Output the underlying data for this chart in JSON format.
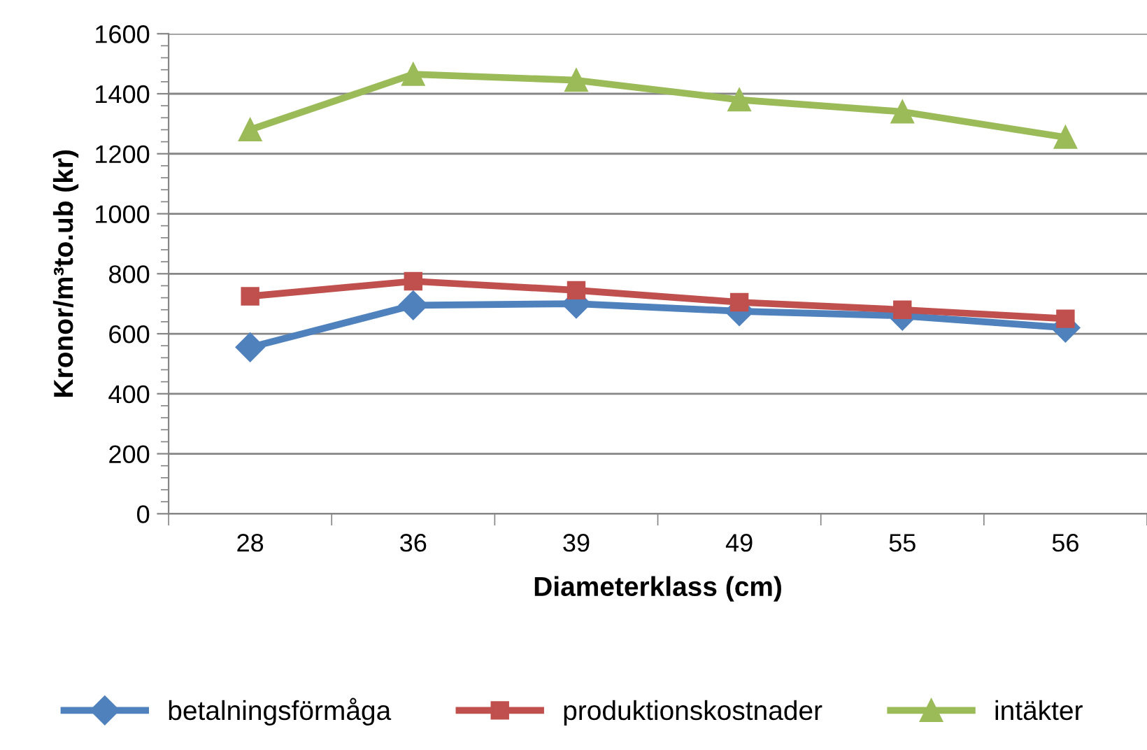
{
  "chart_data": {
    "type": "line",
    "xlabel": "Diameterklass (cm)",
    "ylabel": "Kronor/m³to.ub (kr)",
    "categories": [
      "28",
      "36",
      "39",
      "49",
      "55",
      "56"
    ],
    "series": [
      {
        "name": "betalningsförmåga",
        "color": "#4f81bd",
        "marker": "diamond",
        "values": [
          555,
          695,
          700,
          675,
          660,
          620
        ]
      },
      {
        "name": "produktionskostnader",
        "color": "#c0504d",
        "marker": "square",
        "values": [
          725,
          775,
          745,
          705,
          680,
          650
        ]
      },
      {
        "name": "intäkter",
        "color": "#9bbb59",
        "marker": "triangle",
        "values": [
          1280,
          1465,
          1445,
          1380,
          1340,
          1255
        ]
      }
    ],
    "ylim": [
      0,
      1600
    ],
    "yticks": [
      0,
      200,
      400,
      600,
      800,
      1000,
      1200,
      1400,
      1600
    ],
    "grid": "y",
    "legend": "bottom",
    "line_style": "solid"
  }
}
